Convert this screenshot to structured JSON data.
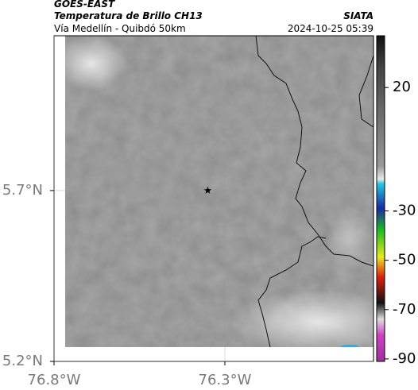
{
  "header": {
    "source": "GOES-EAST",
    "product": "Temperatura de Brillo CH13",
    "region": "Vía Medellín - Quibdó 50km",
    "agency": "SIATA",
    "datetime": "2024-10-25 05:39"
  },
  "map": {
    "xlim": [
      -76.8,
      -75.865
    ],
    "ylim": [
      5.2,
      6.153
    ],
    "xticks": [
      {
        "value": -76.8,
        "label": "76.8°W"
      },
      {
        "value": -76.3,
        "label": "76.3°W"
      }
    ],
    "yticks": [
      {
        "value": 5.2,
        "label": "5.2°N"
      },
      {
        "value": 5.7,
        "label": "5.7°N"
      }
    ],
    "marker": {
      "lon": -76.35,
      "lat": 5.7
    }
  },
  "colorbar": {
    "lim": [
      -91,
      41
    ],
    "ticks": [
      20,
      -30,
      -50,
      -70,
      -90
    ]
  }
}
